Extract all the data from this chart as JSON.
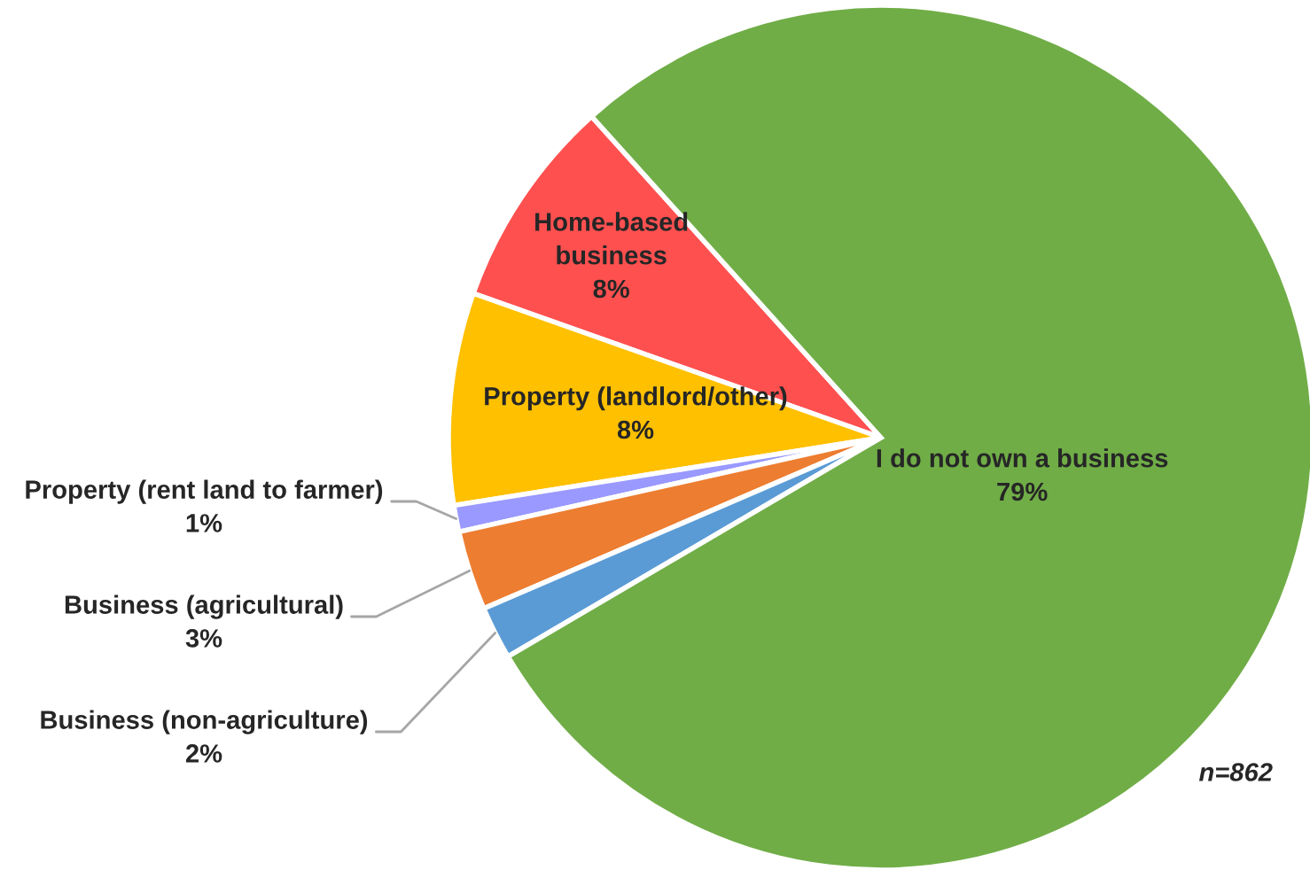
{
  "chart_data": {
    "type": "pie",
    "categories": [
      "Home-based\nbusiness",
      "Property (landlord/other)",
      "Property (rent land to farmer)",
      "Business (agricultural)",
      "Business (non-agriculture)",
      "I do not own a business"
    ],
    "values": [
      8,
      8,
      1,
      3,
      2,
      79
    ],
    "value_labels": [
      "8%",
      "8%",
      "1%",
      "3%",
      "2%",
      "79%"
    ],
    "colors": [
      "#ff5050",
      "#ffc000",
      "#9999ff",
      "#ed7d31",
      "#5b9bd5",
      "#70ad47"
    ],
    "annotations": [
      "n=862"
    ],
    "legend": false
  }
}
